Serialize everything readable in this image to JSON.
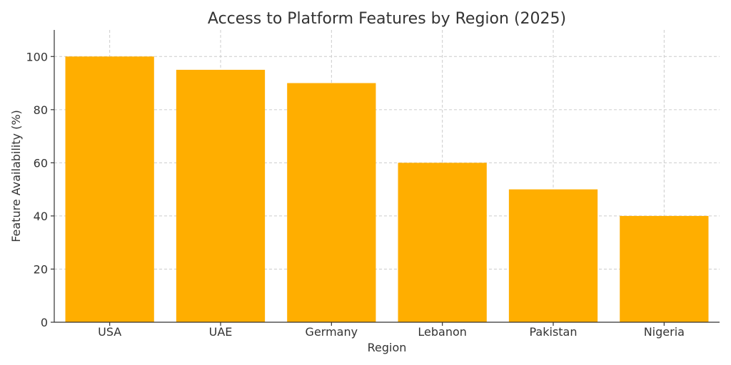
{
  "chart_data": {
    "type": "bar",
    "title": "Access to Platform Features by Region (2025)",
    "xlabel": "Region",
    "ylabel": "Feature Availability (%)",
    "categories": [
      "USA",
      "UAE",
      "Germany",
      "Lebanon",
      "Pakistan",
      "Nigeria"
    ],
    "values": [
      100,
      95,
      90,
      60,
      50,
      40
    ],
    "ylim": [
      0,
      110
    ],
    "yticks": [
      0,
      20,
      40,
      60,
      80,
      100
    ],
    "grid": true,
    "bar_color": "#FFAE00"
  }
}
